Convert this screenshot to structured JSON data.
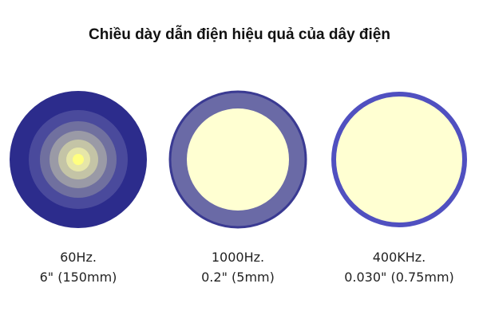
{
  "title": "Chiều dày dẫn điện hiệu quả của dây điện",
  "items": [
    {
      "frequency": "60Hz.",
      "thickness": "6\" (150mm)"
    },
    {
      "frequency": "1000Hz.",
      "thickness": "0.2\" (5mm)"
    },
    {
      "frequency": "400KHz.",
      "thickness": "0.030\" (0.75mm)"
    }
  ]
}
